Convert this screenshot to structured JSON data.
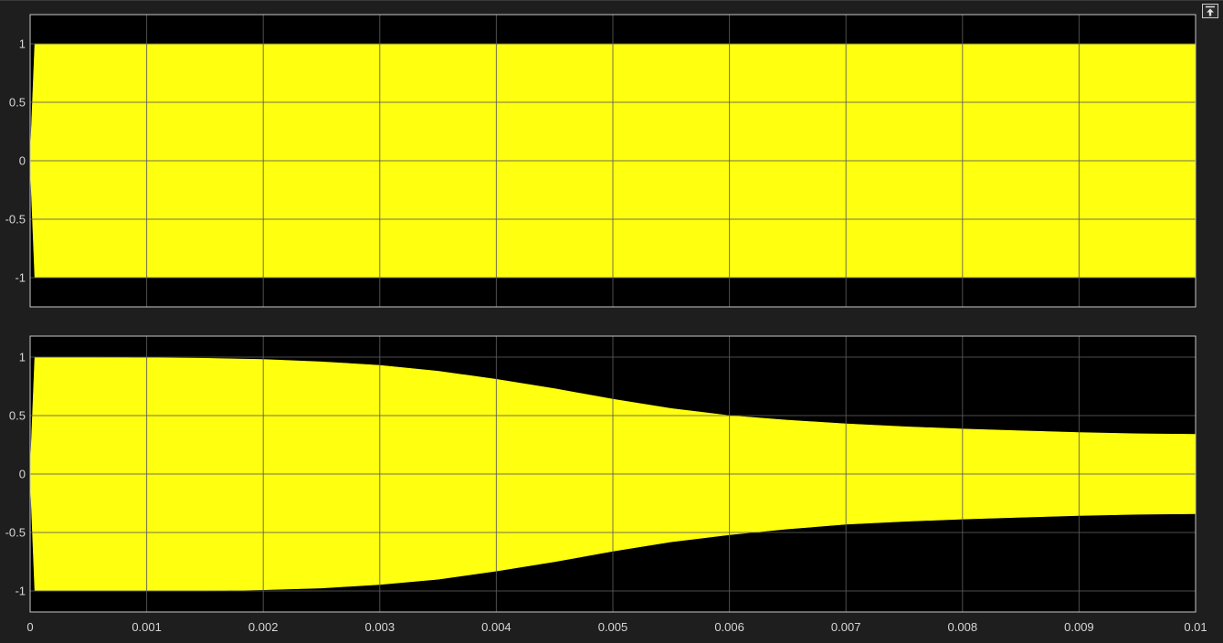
{
  "colors": {
    "background": "#1e1e1e",
    "axes_background": "#000000",
    "axes_border": "#c8c8c8",
    "grid": "#5a5a5a",
    "signal": "#ffff10",
    "tick_text": "#d6d6d6"
  },
  "toolbar": {
    "undock_icon": "undock-icon"
  },
  "chart_data": [
    {
      "type": "area",
      "title": "",
      "xlabel": "",
      "ylabel": "",
      "grid": true,
      "xlim": [
        0,
        0.01
      ],
      "ylim": [
        -1.25,
        1.25
      ],
      "x_ticks": [
        0,
        0.001,
        0.002,
        0.003,
        0.004,
        0.005,
        0.006,
        0.007,
        0.008,
        0.009,
        0.01
      ],
      "x_tick_labels": [],
      "y_ticks": [
        1,
        0.5,
        0,
        -0.5,
        -1
      ],
      "y_tick_labels": [
        "1",
        "0.5",
        "0",
        "-0.5",
        "-1"
      ],
      "series": [
        {
          "envelope_x": [
            0,
            4e-05,
            0.0001,
            0.0002,
            0.001,
            0.002,
            0.003,
            0.004,
            0.005,
            0.006,
            0.007,
            0.008,
            0.009,
            0.01
          ],
          "upper": [
            0,
            1,
            1,
            1,
            1,
            1,
            1,
            1,
            1,
            1,
            1,
            1,
            1,
            1
          ],
          "lower": [
            0,
            -1,
            -1,
            -1,
            -1,
            -1,
            -1,
            -1,
            -1,
            -1,
            -1,
            -1,
            -1,
            -1
          ]
        }
      ]
    },
    {
      "type": "area",
      "title": "",
      "xlabel": "",
      "ylabel": "",
      "grid": true,
      "xlim": [
        0,
        0.01
      ],
      "ylim": [
        -1.18,
        1.18
      ],
      "x_ticks": [
        0,
        0.001,
        0.002,
        0.003,
        0.004,
        0.005,
        0.006,
        0.007,
        0.008,
        0.009,
        0.01
      ],
      "x_tick_labels": [
        "0",
        "0.001",
        "0.002",
        "0.003",
        "0.004",
        "0.005",
        "0.006",
        "0.007",
        "0.008",
        "0.009",
        "0.01"
      ],
      "y_ticks": [
        1,
        0.5,
        0,
        -0.5,
        -1
      ],
      "y_tick_labels": [
        "1",
        "0.5",
        "0",
        "-0.5",
        "-1"
      ],
      "series": [
        {
          "envelope_x": [
            0,
            4e-05,
            0.0001,
            0.0005,
            0.001,
            0.0015,
            0.002,
            0.0025,
            0.003,
            0.0035,
            0.004,
            0.0045,
            0.005,
            0.0055,
            0.006,
            0.0065,
            0.007,
            0.0075,
            0.008,
            0.0085,
            0.009,
            0.0095,
            0.01
          ],
          "upper": [
            0,
            1,
            1,
            1,
            0.995,
            0.99,
            0.98,
            0.96,
            0.93,
            0.88,
            0.81,
            0.73,
            0.64,
            0.56,
            0.5,
            0.46,
            0.43,
            0.405,
            0.385,
            0.37,
            0.355,
            0.345,
            0.34
          ],
          "lower": [
            0,
            -1,
            -1,
            -1,
            -1,
            -1,
            -0.99,
            -0.975,
            -0.945,
            -0.9,
            -0.83,
            -0.75,
            -0.66,
            -0.58,
            -0.52,
            -0.47,
            -0.43,
            -0.405,
            -0.385,
            -0.37,
            -0.355,
            -0.345,
            -0.34
          ]
        }
      ]
    }
  ]
}
